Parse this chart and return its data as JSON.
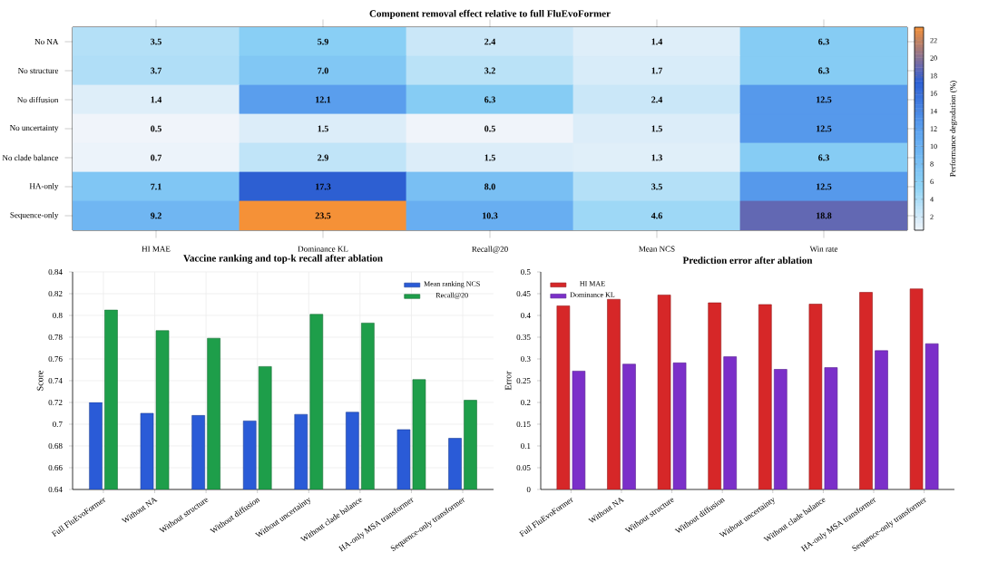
{
  "chart_data": [
    {
      "type": "heatmap",
      "title": "Component removal effect relative to full FluEvoFormer",
      "categories": [
        "HI MAE",
        "Dominance KL",
        "Recall@20",
        "Mean NCS",
        "Win rate"
      ],
      "y_categories": [
        "No NA",
        "No structure",
        "No diffusion",
        "No uncertainty",
        "No clade balance",
        "HA-only",
        "Sequence-only"
      ],
      "cells": [
        [
          3.5,
          5.9,
          2.4,
          1.4,
          6.3
        ],
        [
          3.7,
          7.0,
          3.2,
          1.7,
          6.3
        ],
        [
          1.4,
          12.1,
          6.3,
          2.4,
          12.5
        ],
        [
          0.5,
          1.5,
          0.5,
          1.5,
          12.5
        ],
        [
          0.7,
          2.9,
          1.5,
          1.3,
          6.3
        ],
        [
          7.1,
          17.3,
          8.0,
          3.5,
          12.5
        ],
        [
          9.2,
          23.5,
          10.3,
          4.6,
          18.8
        ]
      ],
      "cell_labels": [
        [
          "3.5",
          "5.9",
          "2.4",
          "1.4",
          "6.3"
        ],
        [
          "3.7",
          "7.0",
          "3.2",
          "1.7",
          "6.3"
        ],
        [
          "1.4",
          "12.1",
          "6.3",
          "2.4",
          "12.5"
        ],
        [
          "0.5",
          "1.5",
          "0.5",
          "1.5",
          "12.5"
        ],
        [
          "0.7",
          "2.9",
          "1.5",
          "1.3",
          "6.3"
        ],
        [
          "7.1",
          "17.3",
          "8.0",
          "3.5",
          "12.5"
        ],
        [
          "9.2",
          "23.5",
          "10.3",
          "4.6",
          "18.8"
        ]
      ],
      "clim": [
        0.5,
        23.5
      ],
      "cticks": [
        2,
        4,
        6,
        8,
        10,
        12,
        14,
        16,
        18,
        20,
        22
      ],
      "clabel": "Performance degradation (%)",
      "data_labels": true
    },
    {
      "type": "bar",
      "title": "Vaccine ranking and top-k recall after ablation",
      "ylabel": "Score",
      "categories": [
        "Full FluEvoFormer",
        "Without NA",
        "Without structure",
        "Without diffusion",
        "Without uncertainty",
        "Without clade balance",
        "HA-only MSA transformer",
        "Sequence-only transformer"
      ],
      "series": [
        {
          "name": "Mean ranking NCS",
          "color": "#2a5bd7",
          "values": [
            0.72,
            0.71,
            0.708,
            0.703,
            0.709,
            0.711,
            0.695,
            0.687
          ]
        },
        {
          "name": "Recall@20",
          "color": "#1e9e4a",
          "values": [
            0.805,
            0.786,
            0.779,
            0.753,
            0.801,
            0.793,
            0.741,
            0.722
          ]
        }
      ],
      "ylim": [
        0.64,
        0.84
      ],
      "yticks": [
        0.64,
        0.66,
        0.68,
        0.7,
        0.72,
        0.74,
        0.76,
        0.78,
        0.8,
        0.82,
        0.84
      ],
      "grid": true,
      "legend": "top right"
    },
    {
      "type": "bar",
      "title": "Prediction error after ablation",
      "ylabel": "Error",
      "categories": [
        "Full FluEvoFormer",
        "Without NA",
        "Without structure",
        "Without diffusion",
        "Without uncertainty",
        "Without clade balance",
        "HA-only MSA transformer",
        "Sequence-only transformer"
      ],
      "series": [
        {
          "name": "HI MAE",
          "color": "#d62728",
          "values": [
            0.422,
            0.437,
            0.447,
            0.429,
            0.425,
            0.426,
            0.453,
            0.461
          ]
        },
        {
          "name": "Dominance KL",
          "color": "#7b2fc9",
          "values": [
            0.272,
            0.288,
            0.291,
            0.305,
            0.276,
            0.28,
            0.319,
            0.335
          ]
        }
      ],
      "ylim": [
        0,
        0.5
      ],
      "yticks": [
        0,
        0.05,
        0.1,
        0.15,
        0.2,
        0.25,
        0.3,
        0.35,
        0.4,
        0.45,
        0.5
      ],
      "legend": "top left"
    }
  ]
}
